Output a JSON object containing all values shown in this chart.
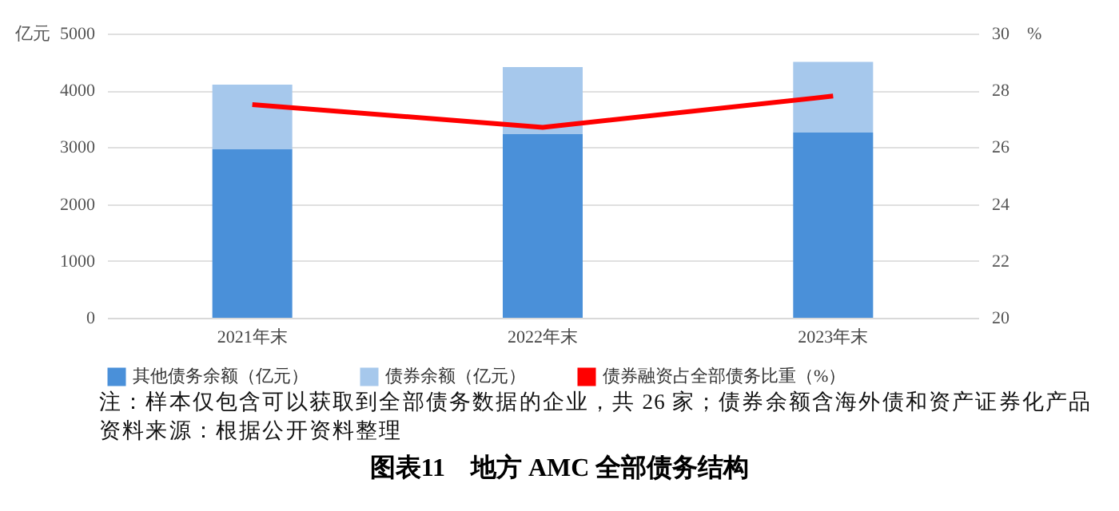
{
  "chart_data": {
    "type": "bar",
    "title": "图表11　地方 AMC 全部债务结构",
    "categories": [
      "2021年末",
      "2022年末",
      "2023年末"
    ],
    "stacked": true,
    "series": [
      {
        "name": "其他债务余额（亿元）",
        "color": "#4a90d9",
        "values": [
          2970,
          3230,
          3260
        ]
      },
      {
        "name": "债券余额（亿元）",
        "color": "#a6c8ec",
        "values": [
          1130,
          1180,
          1240
        ]
      },
      {
        "name": "债券融资占全部债务比重（%）",
        "type": "line",
        "axis": "y2",
        "color": "#ff0000",
        "values": [
          27.5,
          26.7,
          27.8
        ]
      }
    ],
    "ylabel": "亿元",
    "y2label": "%",
    "ylim": [
      0,
      5000
    ],
    "yticks": [
      0,
      1000,
      2000,
      3000,
      4000,
      5000
    ],
    "y2lim": [
      20,
      30
    ],
    "y2ticks": [
      20,
      22,
      24,
      26,
      28,
      30
    ],
    "grid": "y",
    "legend": "bottom",
    "annotations": [
      "注：样本仅包含可以获取到全部债务数据的企业，共 26 家；债券余额含海外债和资产证券化产品",
      "资料来源：根据公开资料整理"
    ]
  }
}
